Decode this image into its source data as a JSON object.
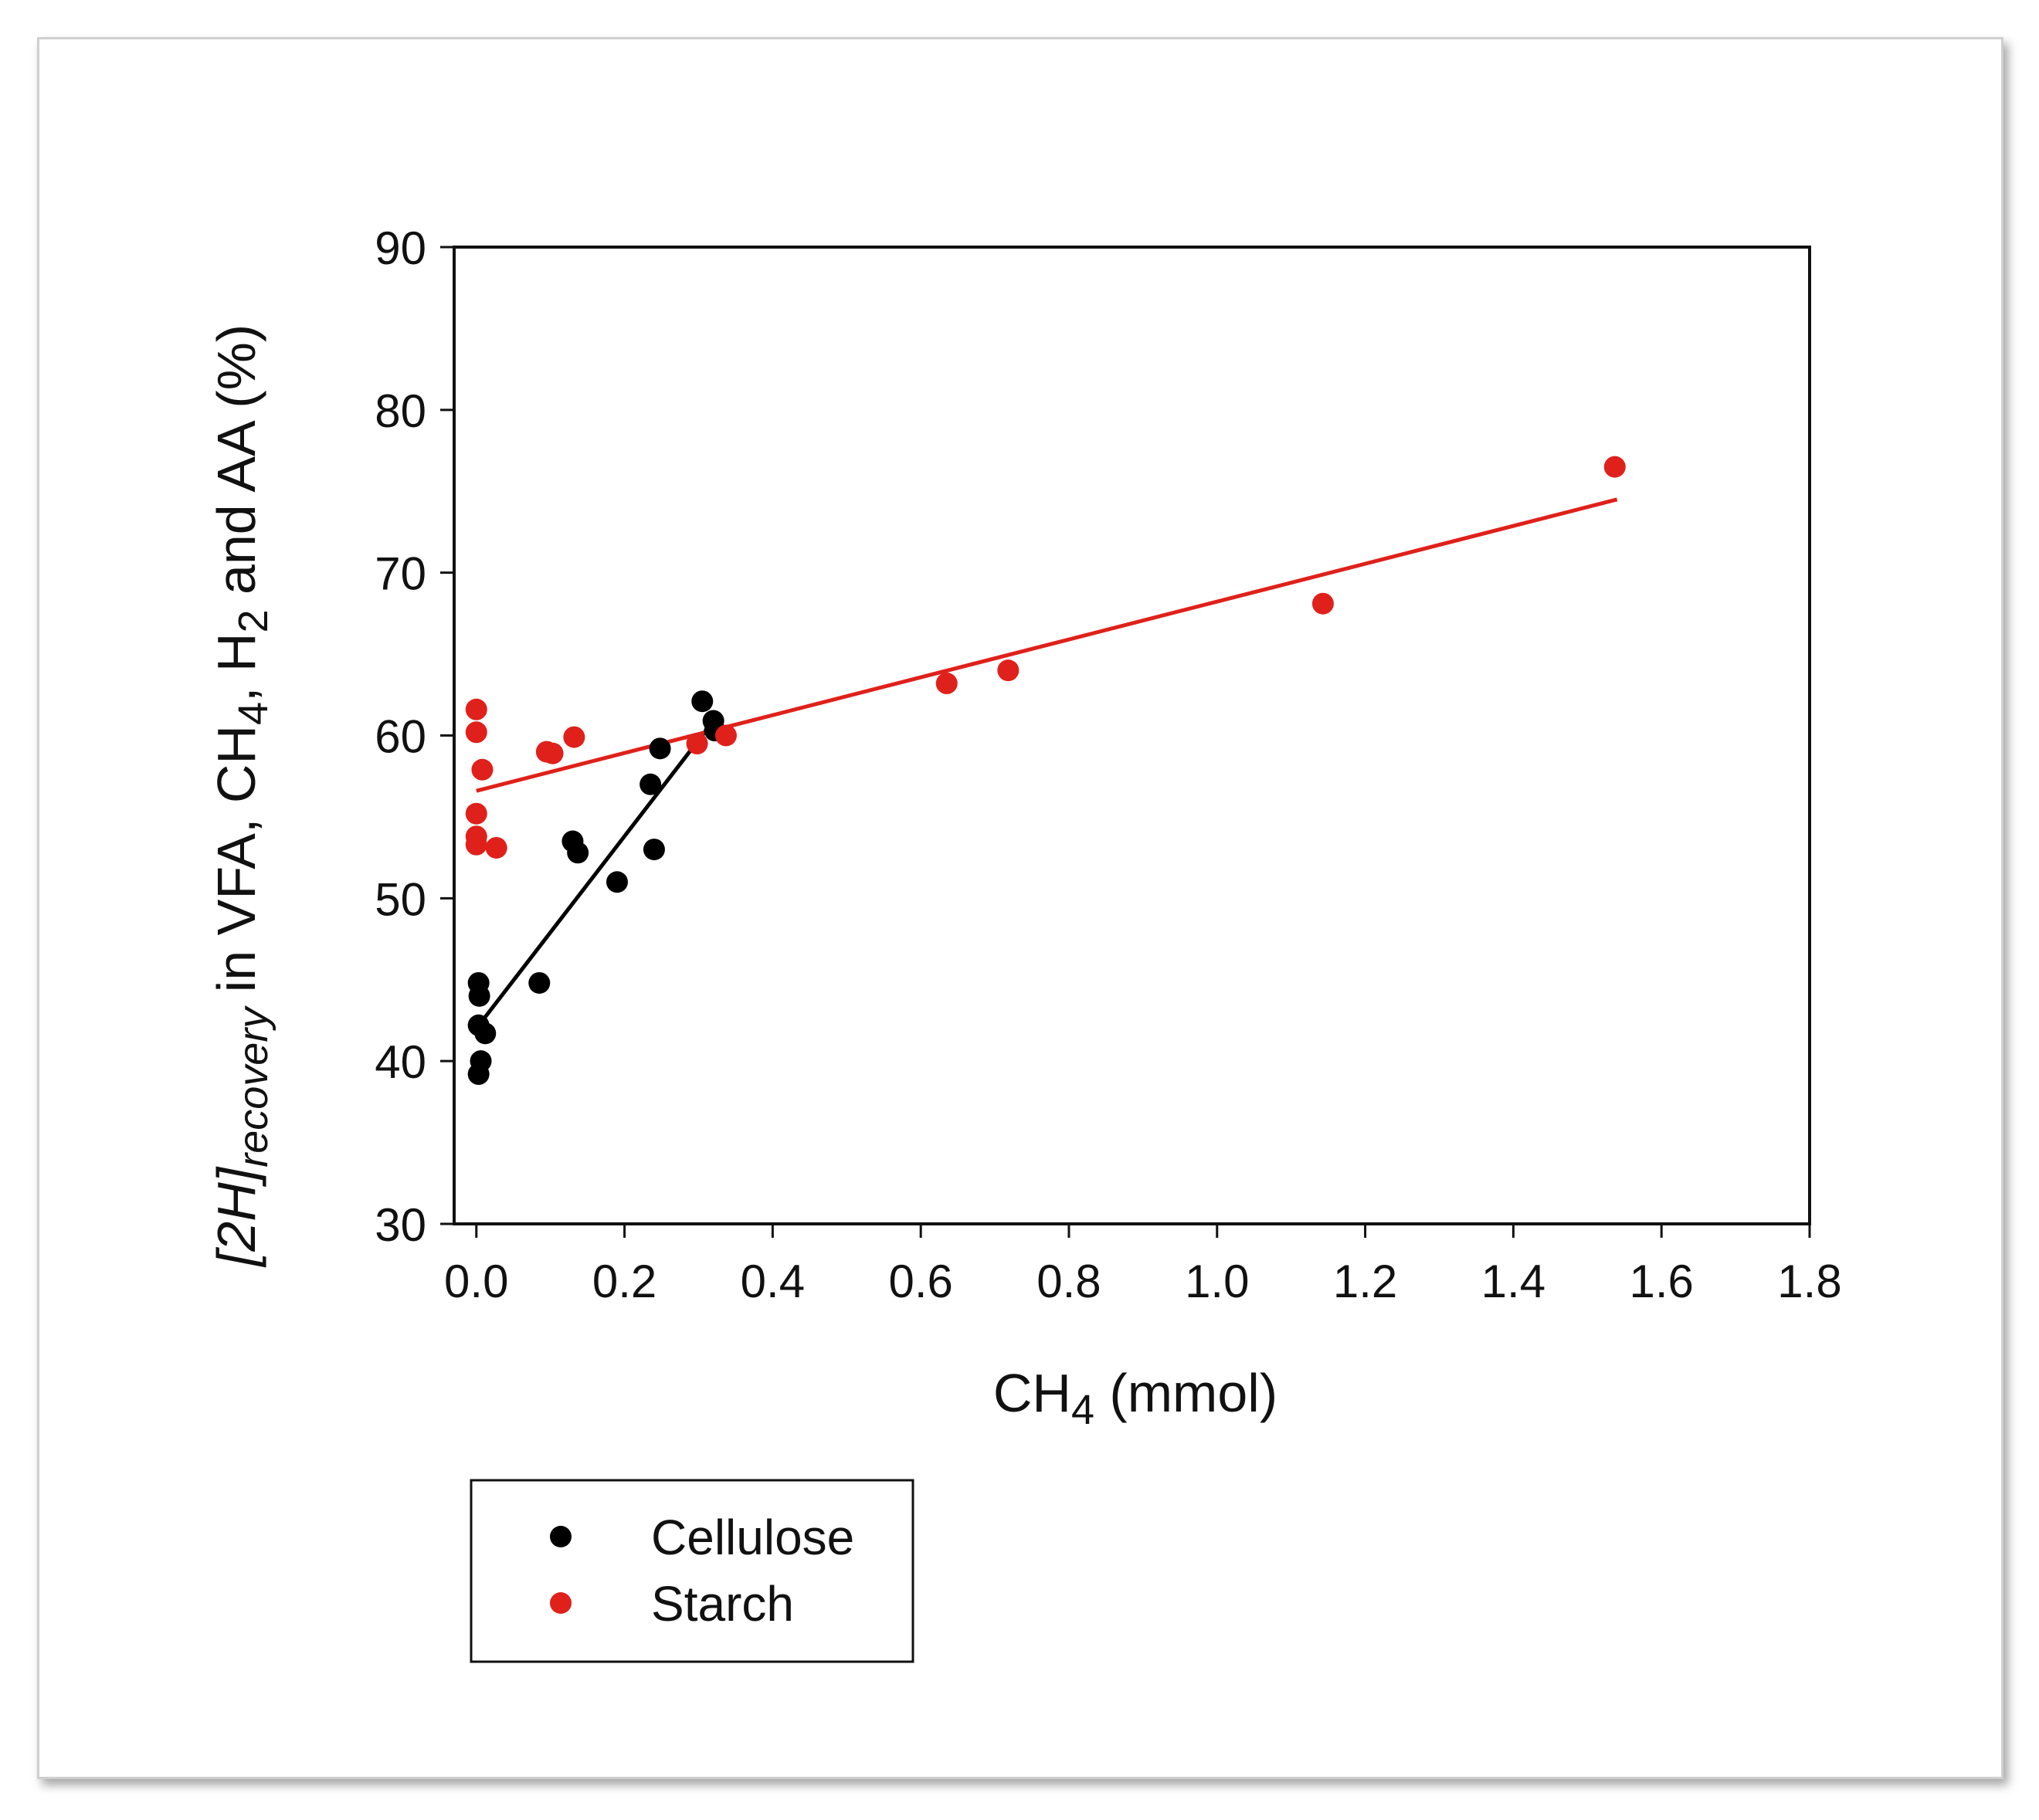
{
  "chart_data": {
    "type": "scatter",
    "title": "",
    "xlabel": {
      "main": "CH",
      "sub": "4",
      "rest": " (mmol)"
    },
    "ylabel": {
      "italic_main": "[2H]",
      "italic_sub": "recovery",
      "part1": " in VFA, CH",
      "sub1": "4",
      "part2": ", H",
      "sub2": "2",
      "part3": " and AA (%)"
    },
    "xlim": [
      -0.03,
      1.8
    ],
    "ylim": [
      30,
      90
    ],
    "xticks": [
      "0.0",
      "0.2",
      "0.4",
      "0.6",
      "0.8",
      "1.0",
      "1.2",
      "1.4",
      "1.6",
      "1.8"
    ],
    "yticks": [
      "30",
      "40",
      "50",
      "60",
      "70",
      "80",
      "90"
    ],
    "grid": false,
    "legend_position": "bottom-left",
    "series": [
      {
        "name": "Cellulose",
        "color": "#000000",
        "points": [
          [
            0.003,
            44.8
          ],
          [
            0.004,
            44.0
          ],
          [
            0.003,
            42.2
          ],
          [
            0.012,
            41.7
          ],
          [
            0.006,
            40.0
          ],
          [
            0.003,
            39.2
          ],
          [
            0.085,
            44.8
          ],
          [
            0.13,
            53.5
          ],
          [
            0.137,
            52.8
          ],
          [
            0.19,
            51.0
          ],
          [
            0.235,
            57.0
          ],
          [
            0.24,
            53.0
          ],
          [
            0.248,
            59.2
          ],
          [
            0.305,
            62.1
          ],
          [
            0.32,
            60.9
          ],
          [
            0.322,
            60.3
          ]
        ],
        "fit": [
          [
            0.0,
            42.0
          ],
          [
            0.32,
            60.9
          ]
        ]
      },
      {
        "name": "Starch",
        "color": "#e0201a",
        "points": [
          [
            0.0,
            61.6
          ],
          [
            0.0,
            60.2
          ],
          [
            0.008,
            57.9
          ],
          [
            0.0,
            55.2
          ],
          [
            0.0,
            53.8
          ],
          [
            0.0,
            53.3
          ],
          [
            0.027,
            53.1
          ],
          [
            0.095,
            59.0
          ],
          [
            0.103,
            58.9
          ],
          [
            0.132,
            59.9
          ],
          [
            0.298,
            59.5
          ],
          [
            0.337,
            60.0
          ],
          [
            0.635,
            63.2
          ],
          [
            0.718,
            64.0
          ],
          [
            1.143,
            68.1
          ],
          [
            1.537,
            76.5
          ]
        ],
        "fit": [
          [
            0.0,
            56.6
          ],
          [
            1.54,
            74.5
          ]
        ]
      }
    ]
  }
}
